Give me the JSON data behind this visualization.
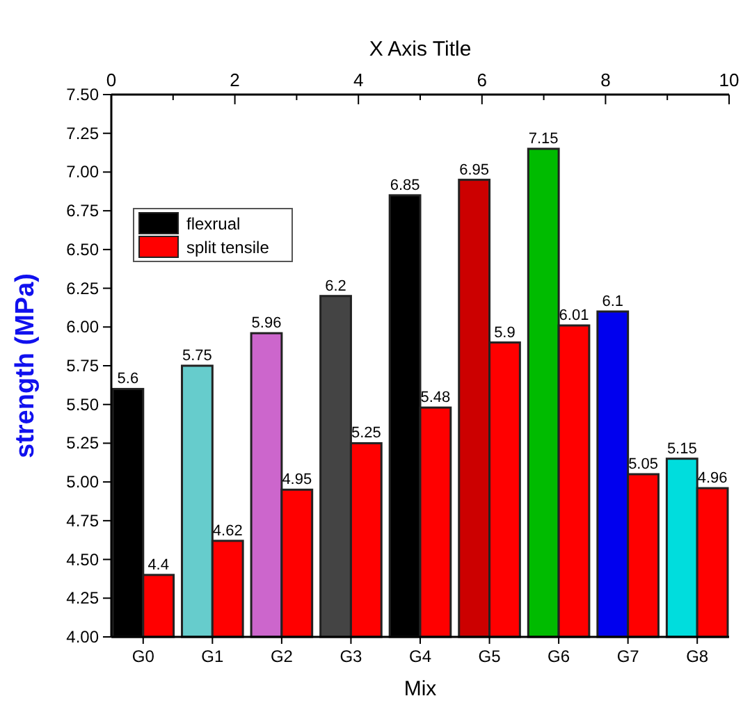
{
  "chart_data": {
    "type": "bar",
    "xlabel": "Mix",
    "ylabel": "strength (MPa)",
    "x2label": "X Axis Title",
    "categories": [
      "G0",
      "G1",
      "G2",
      "G3",
      "G4",
      "G5",
      "G6",
      "G7",
      "G8"
    ],
    "series": [
      {
        "name": "flexrual",
        "color": "#000000",
        "colors": [
          "#000000",
          "#66cccc",
          "#cc66cc",
          "#444444",
          "#000000",
          "#cc0000",
          "#00bb00",
          "#0000ee",
          "#00dddd"
        ],
        "values": [
          5.6,
          5.75,
          5.96,
          6.2,
          6.85,
          6.95,
          7.15,
          6.1,
          5.15
        ]
      },
      {
        "name": "split tensile",
        "color": "#ff0000",
        "values": [
          4.4,
          4.62,
          4.95,
          5.25,
          5.48,
          5.9,
          6.01,
          5.05,
          4.96
        ]
      }
    ],
    "ylim": [
      4,
      7.5
    ],
    "yticks": [
      {
        "value": 4,
        "label": "4.00"
      },
      {
        "value": 4.25,
        "label": "4.25"
      },
      {
        "value": 4.5,
        "label": "4.50"
      },
      {
        "value": 4.75,
        "label": "4.75"
      },
      {
        "value": 5,
        "label": "5.00"
      },
      {
        "value": 5.25,
        "label": "5.25"
      },
      {
        "value": 5.5,
        "label": "5.50"
      },
      {
        "value": 5.75,
        "label": "5.75"
      },
      {
        "value": 6,
        "label": "6.00"
      },
      {
        "value": 6.25,
        "label": "6.25"
      },
      {
        "value": 6.5,
        "label": "6.50"
      },
      {
        "value": 6.75,
        "label": "6.75"
      },
      {
        "value": 7,
        "label": "7.00"
      },
      {
        "value": 7.25,
        "label": "7.25"
      },
      {
        "value": 7.5,
        "label": "7.50"
      }
    ],
    "x2lim": [
      0,
      10
    ],
    "x2ticks": [
      0,
      {
        "value": 1,
        "label": null
      },
      2,
      {
        "value": 3,
        "label": null
      },
      4,
      {
        "value": 5,
        "label": null
      },
      6,
      {
        "value": 7,
        "label": null
      },
      8,
      {
        "value": 9,
        "label": null
      },
      10
    ],
    "data_labels": true,
    "legend": "top left",
    "grid": false
  }
}
